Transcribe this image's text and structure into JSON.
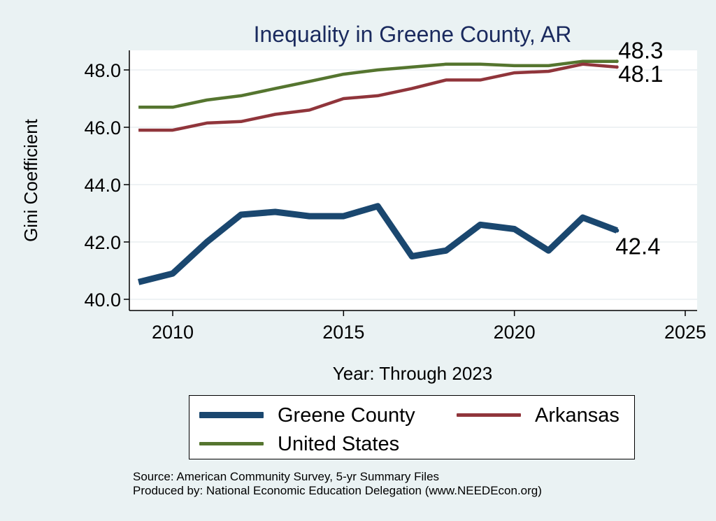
{
  "chart_data": {
    "type": "line",
    "title": "Inequality in Greene County, AR",
    "xlabel": "Year: Through 2023",
    "ylabel": "Gini Coefficient",
    "xlim": [
      2009,
      2025
    ],
    "ylim": [
      40.0,
      48.7
    ],
    "xticks": [
      2010,
      2015,
      2020,
      2025
    ],
    "yticks": [
      40.0,
      42.0,
      44.0,
      46.0,
      48.0
    ],
    "ytick_labels": [
      "40.0",
      "42.0",
      "44.0",
      "46.0",
      "48.0"
    ],
    "grid": true,
    "x": [
      2009,
      2010,
      2011,
      2012,
      2013,
      2014,
      2015,
      2016,
      2017,
      2018,
      2019,
      2020,
      2021,
      2022,
      2023
    ],
    "series": [
      {
        "name": "Greene County",
        "color": "#1a476f",
        "values": [
          40.6,
          40.9,
          42.0,
          42.95,
          43.05,
          42.9,
          42.9,
          43.25,
          41.5,
          41.7,
          42.6,
          42.45,
          41.7,
          42.85,
          42.4
        ],
        "end_label": "42.4"
      },
      {
        "name": "Arkansas",
        "color": "#90353b",
        "values": [
          45.9,
          45.9,
          46.15,
          46.2,
          46.45,
          46.6,
          47.0,
          47.1,
          47.35,
          47.65,
          47.65,
          47.9,
          47.95,
          48.2,
          48.1
        ],
        "end_label": "48.1"
      },
      {
        "name": "United States",
        "color": "#55752f",
        "values": [
          46.7,
          46.7,
          46.95,
          47.1,
          47.35,
          47.6,
          47.85,
          48.0,
          48.1,
          48.2,
          48.2,
          48.15,
          48.15,
          48.3,
          48.3
        ],
        "end_label": "48.3"
      }
    ],
    "legend_position": "bottom"
  },
  "legend": {
    "items": [
      {
        "label": "Greene County",
        "color": "#1a476f"
      },
      {
        "label": "Arkansas",
        "color": "#90353b"
      },
      {
        "label": "United States",
        "color": "#55752f"
      }
    ]
  },
  "footer": {
    "source": "Source: American Community Survey, 5-yr Summary Files",
    "produced_by": "Produced by: National Economic Education Delegation (www.NEEDEcon.org)"
  }
}
